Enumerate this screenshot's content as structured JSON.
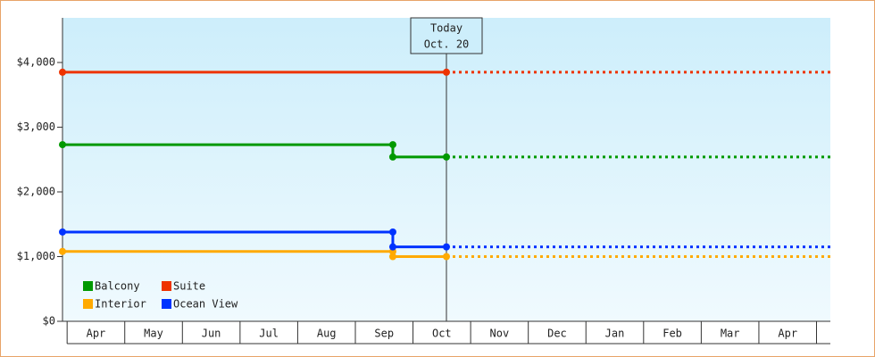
{
  "chart_data": {
    "type": "step-line",
    "categories": [
      "Apr",
      "May",
      "Jun",
      "Jul",
      "Aug",
      "Sep",
      "Oct",
      "Nov",
      "Dec",
      "Jan",
      "Feb",
      "Mar",
      "Apr"
    ],
    "xlim": [
      -0.08,
      13.24
    ],
    "ylim": [
      0,
      4690
    ],
    "yticks": [
      {
        "value": 0,
        "label": "$0"
      },
      {
        "value": 1000,
        "label": "$1,000"
      },
      {
        "value": 2000,
        "label": "$2,000"
      },
      {
        "value": 3000,
        "label": "$3,000"
      },
      {
        "value": 4000,
        "label": "$4,000"
      }
    ],
    "annotation": {
      "x": 6.58,
      "lines": [
        "Today",
        "Oct. 20"
      ]
    },
    "legend": "bottom-left",
    "series": [
      {
        "name": "Balcony",
        "color": "#009900",
        "x": [
          -0.08,
          5.65,
          5.65,
          6.58,
          13.24
        ],
        "values": [
          2730,
          2730,
          2540,
          2540,
          2540
        ]
      },
      {
        "name": "Suite",
        "color": "#ee3300",
        "x": [
          -0.08,
          6.58,
          13.24
        ],
        "values": [
          3850,
          3850,
          3850
        ]
      },
      {
        "name": "Interior",
        "color": "#ffaa00",
        "x": [
          -0.08,
          5.65,
          5.65,
          6.58,
          13.24
        ],
        "values": [
          1080,
          1080,
          1000,
          1000,
          1000
        ]
      },
      {
        "name": "Ocean View",
        "color": "#0033ff",
        "x": [
          -0.08,
          5.65,
          5.65,
          6.58,
          13.24
        ],
        "values": [
          1380,
          1380,
          1150,
          1150,
          1150
        ]
      }
    ]
  }
}
